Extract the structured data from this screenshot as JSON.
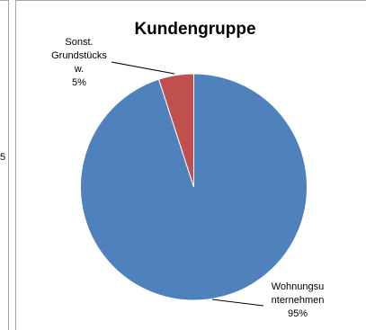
{
  "left_panel": {
    "edge_label": "5"
  },
  "chart_data": {
    "type": "pie",
    "title": "Kundengruppe",
    "start_angle_deg": 0,
    "direction": "clockwise",
    "slices": [
      {
        "name": "Wohnungsunternehmen",
        "label_lines": [
          "Wohnungsu",
          "nternehmen",
          "95%"
        ],
        "value": 95,
        "color": "#4f81bd"
      },
      {
        "name": "Sonst. Grundstücksw.",
        "label_lines": [
          "Sonst.",
          "Grundstücks",
          "w.",
          "5%"
        ],
        "value": 5,
        "color": "#c0504d"
      }
    ],
    "legend": "none"
  }
}
